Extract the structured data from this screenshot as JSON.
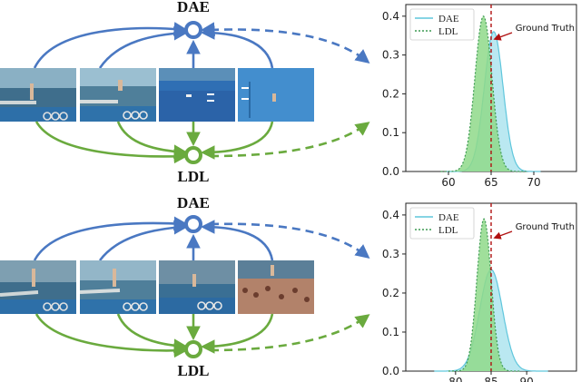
{
  "colors": {
    "dae": "#4a78c2",
    "ldl": "#6aaa3e",
    "dae_fill": "#aee4ef",
    "ldl_fill": "#8fd98a",
    "ground_truth": "#b01010"
  },
  "rows": [
    {
      "top_node": "DAE",
      "bottom_node": "LDL",
      "frames": [
        "diving-frame-1",
        "diving-frame-2",
        "diving-frame-3",
        "diving-frame-4"
      ]
    },
    {
      "top_node": "DAE",
      "bottom_node": "LDL",
      "frames": [
        "diving-frame-1",
        "diving-frame-2",
        "diving-frame-3",
        "diving-frame-4"
      ]
    }
  ],
  "chart_data": [
    {
      "type": "area",
      "xlim": [
        55,
        75
      ],
      "ylim": [
        0,
        0.43
      ],
      "xticks": [
        60,
        65,
        70
      ],
      "yticks": [
        0.0,
        0.1,
        0.2,
        0.3,
        0.4
      ],
      "legend": [
        "DAE",
        "LDL"
      ],
      "legend_position": "top-left",
      "annotation": "Ground Truth",
      "ground_truth": 65,
      "series": [
        {
          "name": "DAE",
          "mean": 65.3,
          "std": 1.1,
          "peak": 0.36
        },
        {
          "name": "LDL",
          "mean": 64.1,
          "std": 1.0,
          "peak": 0.4
        }
      ]
    },
    {
      "type": "area",
      "xlim": [
        73,
        97
      ],
      "ylim": [
        0,
        0.43
      ],
      "xticks": [
        80,
        85,
        90
      ],
      "yticks": [
        0.0,
        0.1,
        0.2,
        0.3,
        0.4
      ],
      "legend": [
        "DAE",
        "LDL"
      ],
      "legend_position": "top-left",
      "annotation": "Ground Truth",
      "ground_truth": 85,
      "series": [
        {
          "name": "DAE",
          "mean": 85.0,
          "std": 1.6,
          "peak": 0.26
        },
        {
          "name": "LDL",
          "mean": 84.0,
          "std": 1.0,
          "peak": 0.39
        }
      ]
    }
  ]
}
